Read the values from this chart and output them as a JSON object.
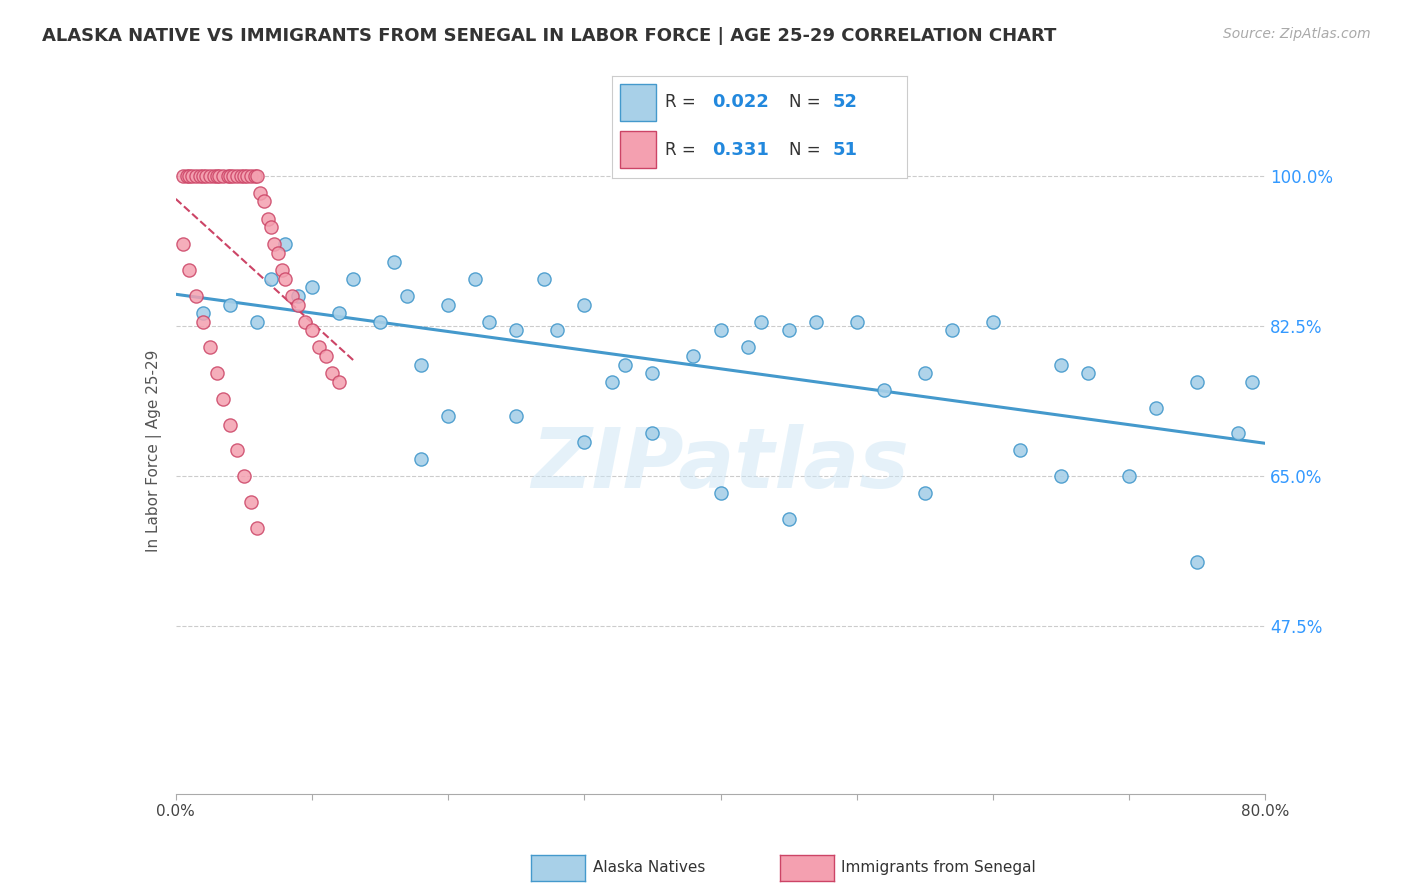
{
  "title": "ALASKA NATIVE VS IMMIGRANTS FROM SENEGAL IN LABOR FORCE | AGE 25-29 CORRELATION CHART",
  "source": "Source: ZipAtlas.com",
  "ylabel": "In Labor Force | Age 25-29",
  "xlim": [
    0.0,
    0.8
  ],
  "ylim": [
    0.28,
    1.08
  ],
  "xticks": [
    0.0,
    0.1,
    0.2,
    0.3,
    0.4,
    0.5,
    0.6,
    0.7,
    0.8
  ],
  "xticklabels": [
    "0.0%",
    "",
    "",
    "",
    "",
    "",
    "",
    "",
    "80.0%"
  ],
  "yticks": [
    0.475,
    0.65,
    0.825,
    1.0
  ],
  "yticklabels": [
    "47.5%",
    "65.0%",
    "82.5%",
    "100.0%"
  ],
  "r_alaska": 0.022,
  "n_alaska": 52,
  "r_senegal": 0.331,
  "n_senegal": 51,
  "color_alaska": "#a8d0e8",
  "color_alaska_line": "#4499cc",
  "color_senegal": "#f4a0b0",
  "color_senegal_line": "#cc4466",
  "watermark": "ZIPatlas",
  "alaska_x": [
    0.02,
    0.04,
    0.06,
    0.07,
    0.08,
    0.09,
    0.1,
    0.12,
    0.13,
    0.15,
    0.16,
    0.17,
    0.18,
    0.2,
    0.22,
    0.23,
    0.25,
    0.27,
    0.28,
    0.3,
    0.32,
    0.33,
    0.35,
    0.38,
    0.4,
    0.42,
    0.43,
    0.45,
    0.47,
    0.5,
    0.52,
    0.55,
    0.57,
    0.6,
    0.62,
    0.65,
    0.67,
    0.7,
    0.72,
    0.75,
    0.78,
    0.79,
    0.18,
    0.2,
    0.25,
    0.3,
    0.35,
    0.4,
    0.45,
    0.55,
    0.65,
    0.75
  ],
  "alaska_y": [
    0.84,
    0.85,
    0.83,
    0.88,
    0.92,
    0.86,
    0.87,
    0.84,
    0.88,
    0.83,
    0.9,
    0.86,
    0.78,
    0.85,
    0.88,
    0.83,
    0.82,
    0.88,
    0.82,
    0.85,
    0.76,
    0.78,
    0.77,
    0.79,
    0.82,
    0.8,
    0.83,
    0.82,
    0.83,
    0.83,
    0.75,
    0.77,
    0.82,
    0.83,
    0.68,
    0.78,
    0.77,
    0.65,
    0.73,
    0.76,
    0.7,
    0.76,
    0.67,
    0.72,
    0.72,
    0.69,
    0.7,
    0.63,
    0.6,
    0.63,
    0.65,
    0.55
  ],
  "senegal_x": [
    0.005,
    0.008,
    0.01,
    0.012,
    0.015,
    0.018,
    0.02,
    0.022,
    0.025,
    0.028,
    0.03,
    0.032,
    0.035,
    0.038,
    0.04,
    0.042,
    0.045,
    0.048,
    0.05,
    0.052,
    0.055,
    0.058,
    0.06,
    0.062,
    0.065,
    0.068,
    0.07,
    0.072,
    0.075,
    0.078,
    0.08,
    0.085,
    0.09,
    0.095,
    0.1,
    0.105,
    0.11,
    0.115,
    0.12,
    0.005,
    0.01,
    0.015,
    0.02,
    0.025,
    0.03,
    0.035,
    0.04,
    0.045,
    0.05,
    0.055,
    0.06
  ],
  "senegal_y": [
    1.0,
    1.0,
    1.0,
    1.0,
    1.0,
    1.0,
    1.0,
    1.0,
    1.0,
    1.0,
    1.0,
    1.0,
    1.0,
    1.0,
    1.0,
    1.0,
    1.0,
    1.0,
    1.0,
    1.0,
    1.0,
    1.0,
    1.0,
    0.98,
    0.97,
    0.95,
    0.94,
    0.92,
    0.91,
    0.89,
    0.88,
    0.86,
    0.85,
    0.83,
    0.82,
    0.8,
    0.79,
    0.77,
    0.76,
    0.92,
    0.89,
    0.86,
    0.83,
    0.8,
    0.77,
    0.74,
    0.71,
    0.68,
    0.65,
    0.62,
    0.59
  ]
}
